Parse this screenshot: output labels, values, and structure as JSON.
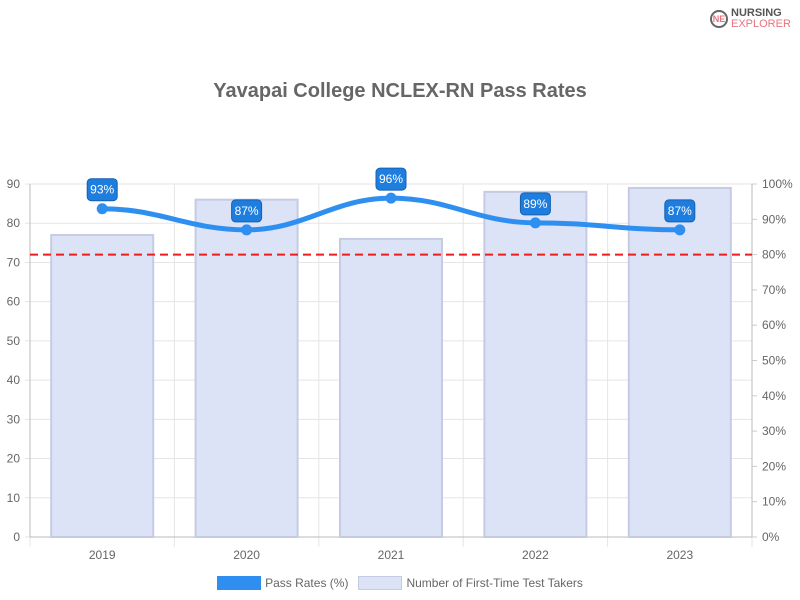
{
  "logo": {
    "line1": "NURSING",
    "line2": "EXPLORER",
    "mark": "NE"
  },
  "chart_data": {
    "type": "bar+line",
    "title": "Yavapai College NCLEX-RN Pass Rates",
    "categories": [
      "2019",
      "2020",
      "2021",
      "2022",
      "2023"
    ],
    "series": [
      {
        "name": "Pass Rates (%)",
        "type": "line",
        "axis": "right",
        "values": [
          93,
          87,
          96,
          89,
          87
        ],
        "labels": [
          "93%",
          "87%",
          "96%",
          "89%",
          "87%"
        ],
        "color": "#2f8ff0"
      },
      {
        "name": "Number of First-Time Test Takers",
        "type": "bar",
        "axis": "left",
        "values": [
          77,
          86,
          76,
          88,
          89
        ],
        "color": "#dce3f7",
        "border": "#c5cbe3"
      }
    ],
    "reference_line": {
      "value": 80,
      "axis": "right",
      "color": "#ee1c1c",
      "style": "dashed"
    },
    "left_axis": {
      "ylim": [
        0,
        90
      ],
      "ticks": [
        "0",
        "10",
        "20",
        "30",
        "40",
        "50",
        "60",
        "70",
        "80",
        "90"
      ]
    },
    "right_axis": {
      "ylim": [
        0,
        100
      ],
      "ticks": [
        "0%",
        "10%",
        "20%",
        "30%",
        "40%",
        "50%",
        "60%",
        "70%",
        "80%",
        "90%",
        "100%"
      ]
    },
    "grid": true,
    "legend": "bottom"
  }
}
